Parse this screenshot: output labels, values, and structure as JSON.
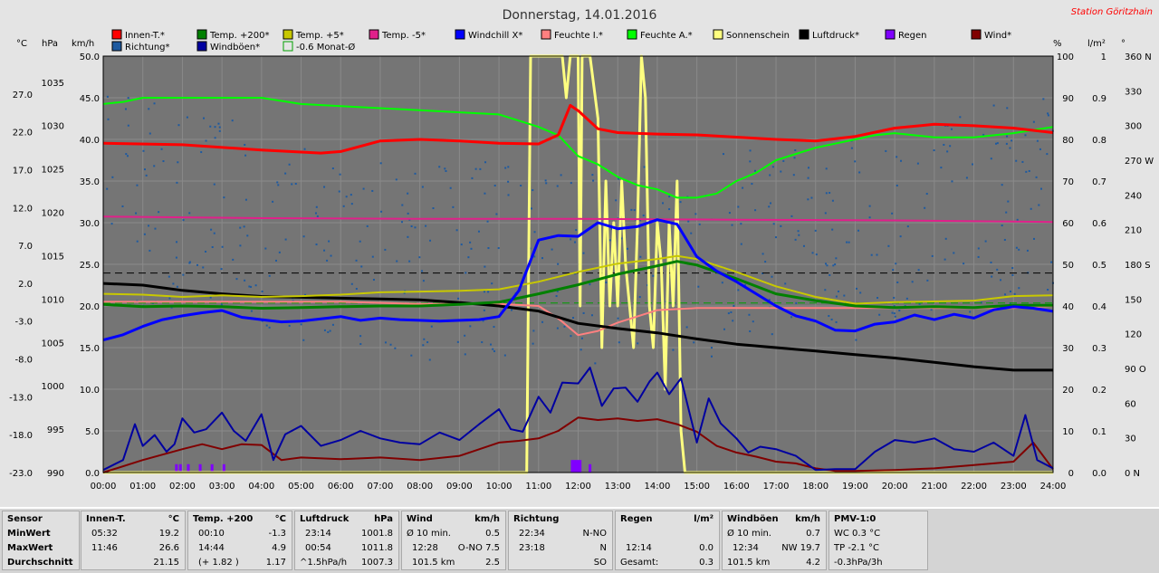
{
  "header": {
    "title": "Donnerstag, 14.01.2016",
    "station": "Station Göritzhain"
  },
  "legend": [
    {
      "label": "Innen-T.*",
      "color": "#ff0000"
    },
    {
      "label": "Temp. +200*",
      "color": "#008000"
    },
    {
      "label": "Temp. +5*",
      "color": "#c8c800"
    },
    {
      "label": "Temp. -5*",
      "color": "#e0208a"
    },
    {
      "label": "Windchill X*",
      "color": "#0000ff"
    },
    {
      "label": "Feuchte I.*",
      "color": "#ff8080"
    },
    {
      "label": "Feuchte A.*",
      "color": "#00ff00"
    },
    {
      "label": "Sonnenschein",
      "color": "#ffff80"
    },
    {
      "label": "Luftdruck*",
      "color": "#000000"
    },
    {
      "label": "Regen",
      "color": "#8000ff"
    },
    {
      "label": "Wind*",
      "color": "#800000"
    },
    {
      "label": "Richtung*",
      "color": "#1e5aa0"
    },
    {
      "label": "Windböen*",
      "color": "#0000a0"
    },
    {
      "label": "-0.6 Monat-Ø",
      "color": "#00a000"
    }
  ],
  "axes": {
    "units": {
      "temp": "°C",
      "pressure": "hPa",
      "wind": "km/h",
      "humidity": "%",
      "rain": "l/m²",
      "direction": "°"
    },
    "temp_ticks": [
      "27.0",
      "22.0",
      "17.0",
      "12.0",
      "7.0",
      "2.0",
      "-3.0",
      "-8.0",
      "-13.0",
      "-18.0",
      "-23.0"
    ],
    "pressure_ticks": [
      "1035",
      "1030",
      "1025",
      "1020",
      "1015",
      "1010",
      "1005",
      "1000",
      "995",
      "990"
    ],
    "wind_ticks": [
      "50.0",
      "45.0",
      "40.0",
      "35.0",
      "30.0",
      "25.0",
      "20.0",
      "15.0",
      "10.0",
      "5.0",
      "0.0"
    ],
    "humidity_ticks": [
      "100",
      "90",
      "80",
      "70",
      "60",
      "50",
      "40",
      "30",
      "20",
      "10",
      "0"
    ],
    "rain_ticks": [
      "1",
      "0.9",
      "0.8",
      "0.7",
      "0.6",
      "0.5",
      "0.4",
      "0.3",
      "0.2",
      "0.1",
      "0.0"
    ],
    "direction_ticks": [
      "360 N",
      "330",
      "300",
      "270 W",
      "240",
      "210",
      "180 S",
      "150",
      "120",
      "90 O",
      "60",
      "30",
      "0 N"
    ],
    "x_ticks": [
      "00:00",
      "01:00",
      "02:00",
      "03:00",
      "04:00",
      "05:00",
      "06:00",
      "07:00",
      "08:00",
      "09:00",
      "10:00",
      "11:00",
      "12:00",
      "13:00",
      "14:00",
      "15:00",
      "16:00",
      "17:00",
      "18:00",
      "19:00",
      "20:00",
      "21:00",
      "22:00",
      "23:00",
      "24:00"
    ]
  },
  "chart_data": {
    "type": "line",
    "title": "Donnerstag, 14.01.2016",
    "x_unit": "hour of day",
    "xlim": [
      0,
      24
    ],
    "grid": true,
    "series": [
      {
        "name": "Innen-T.*",
        "axis": "temp",
        "color": "#ff0000",
        "width": 3,
        "x": [
          0,
          2,
          4,
          5.5,
          6,
          7,
          8,
          9,
          10,
          11,
          11.5,
          11.8,
          12,
          12.5,
          13,
          14,
          15,
          16,
          17,
          18,
          19,
          20,
          21,
          22,
          23,
          24
        ],
        "y": [
          20.5,
          20.3,
          19.6,
          19.2,
          19.4,
          20.8,
          21.0,
          20.8,
          20.5,
          20.4,
          21.6,
          25.5,
          24.8,
          22.4,
          21.9,
          21.7,
          21.6,
          21.3,
          21.0,
          20.8,
          21.4,
          22.5,
          23.0,
          22.8,
          22.5,
          21.9
        ]
      },
      {
        "name": "Temp. +200*",
        "axis": "temp",
        "color": "#008000",
        "width": 3,
        "x": [
          0,
          1,
          2,
          3,
          4,
          5,
          6,
          7,
          8,
          9,
          10,
          11,
          12,
          13,
          14,
          14.5,
          15,
          16,
          17,
          18,
          19,
          20,
          21,
          22,
          23,
          24
        ],
        "y": [
          -0.8,
          -1.1,
          -1.0,
          -1.1,
          -1.3,
          -1.2,
          -1.1,
          -1.0,
          -1.0,
          -0.8,
          -0.5,
          0.6,
          1.8,
          3.2,
          4.3,
          4.9,
          4.4,
          2.6,
          0.6,
          -0.3,
          -1.0,
          -1.2,
          -1.1,
          -1.2,
          -0.9,
          -0.9
        ]
      },
      {
        "name": "Temp. +5*",
        "axis": "temp",
        "color": "#c8c800",
        "width": 2,
        "x": [
          0,
          1,
          2,
          3,
          4,
          5,
          6,
          7,
          8,
          9,
          10,
          11,
          12,
          13,
          14,
          14.5,
          15,
          16,
          17,
          18,
          19,
          20,
          21,
          22,
          23,
          24
        ],
        "y": [
          0.6,
          0.5,
          0.2,
          0.4,
          0.2,
          0.3,
          0.5,
          0.8,
          0.9,
          1.0,
          1.2,
          2.2,
          3.5,
          4.6,
          5.2,
          5.6,
          5.2,
          3.5,
          1.6,
          0.2,
          -0.7,
          -0.5,
          -0.4,
          -0.3,
          0.3,
          0.4
        ]
      },
      {
        "name": "Temp. -5*",
        "axis": "temp",
        "color": "#e0208a",
        "width": 2,
        "x": [
          0,
          4,
          8,
          12,
          16,
          20,
          24
        ],
        "y": [
          10.8,
          10.6,
          10.5,
          10.5,
          10.4,
          10.3,
          10.1
        ]
      },
      {
        "name": "Windchill X*",
        "axis": "temp",
        "color": "#0000ff",
        "width": 3,
        "x": [
          0,
          0.5,
          1,
          1.5,
          2,
          2.5,
          3,
          3.5,
          4,
          4.5,
          5,
          5.5,
          6,
          6.5,
          7,
          7.5,
          8,
          8.5,
          9,
          9.5,
          10,
          10.5,
          11,
          11.5,
          12,
          12.5,
          13,
          13.5,
          14,
          14.5,
          15,
          15.5,
          16,
          16.5,
          17,
          17.5,
          18,
          18.5,
          19,
          19.5,
          20,
          20.5,
          21,
          21.5,
          22,
          22.5,
          23,
          23.5,
          24
        ],
        "y": [
          -5.5,
          -4.8,
          -3.7,
          -2.8,
          -2.3,
          -1.9,
          -1.6,
          -2.5,
          -2.8,
          -3.1,
          -3.0,
          -2.7,
          -2.4,
          -2.9,
          -2.6,
          -2.8,
          -2.9,
          -3.0,
          -2.9,
          -2.8,
          -2.4,
          1.0,
          7.7,
          8.3,
          8.2,
          10.0,
          9.2,
          9.5,
          10.4,
          9.8,
          5.5,
          3.6,
          2.2,
          0.6,
          -1.0,
          -2.3,
          -3.0,
          -4.2,
          -4.3,
          -3.4,
          -3.1,
          -2.2,
          -2.8,
          -2.1,
          -2.6,
          -1.5,
          -1.1,
          -1.3,
          -1.7
        ]
      },
      {
        "name": "Feuchte I.*",
        "axis": "humidity",
        "color": "#ff8080",
        "width": 2,
        "x": [
          0,
          2,
          4,
          6,
          8,
          9,
          10,
          11,
          11.5,
          12,
          12.5,
          13,
          14,
          15,
          16,
          17,
          18,
          19,
          20,
          21,
          22,
          23,
          24
        ],
        "y": [
          41,
          41,
          41,
          41,
          40.5,
          40.5,
          40.5,
          40.0,
          37,
          33,
          34,
          36,
          39.0,
          39.5,
          39.5,
          39.5,
          39.5,
          39.5,
          39.5,
          39.5,
          39.5,
          39.5,
          40.0
        ]
      },
      {
        "name": "Feuchte A.*",
        "axis": "humidity",
        "color": "#00ff00",
        "width": 2,
        "x": [
          0,
          0.5,
          1,
          2,
          3,
          4,
          5,
          6,
          7,
          8,
          9,
          10,
          11,
          11.5,
          12,
          12.5,
          13,
          13.5,
          14,
          14.5,
          15,
          15.5,
          16,
          16.5,
          17,
          18,
          19,
          19.5,
          20,
          21,
          22,
          23,
          24
        ],
        "y": [
          88.5,
          89,
          90,
          90,
          90,
          90,
          88.5,
          88,
          87.5,
          87,
          86.5,
          86,
          83,
          81,
          76,
          74,
          71,
          69,
          68,
          66,
          66,
          67,
          70,
          72,
          75,
          78,
          80,
          81,
          81.5,
          80.5,
          80.5,
          81.5,
          83
        ]
      },
      {
        "name": "Sonnenschein",
        "axis": "humidity",
        "color": "#ffff80",
        "width": 3,
        "x": [
          0,
          10.2,
          10.5,
          10.7,
          10.8,
          11.3,
          11.4,
          11.6,
          11.7,
          11.8,
          11.9,
          12.0,
          12.05,
          12.1,
          12.3,
          12.5,
          12.6,
          12.7,
          12.8,
          12.9,
          13.0,
          13.1,
          13.2,
          13.3,
          13.4,
          13.5,
          13.6,
          13.7,
          13.8,
          13.9,
          14.0,
          14.1,
          14.2,
          14.3,
          14.4,
          14.5,
          14.6,
          14.7,
          14.8,
          15.0,
          24
        ],
        "y": [
          0,
          0,
          0,
          0,
          100,
          100,
          100,
          100,
          90,
          100,
          100,
          100,
          40,
          100,
          100,
          85,
          30,
          70,
          40,
          60,
          40,
          70,
          50,
          40,
          30,
          60,
          100,
          90,
          40,
          30,
          60,
          50,
          20,
          60,
          40,
          70,
          10,
          0,
          0,
          0,
          0
        ]
      },
      {
        "name": "Luftdruck*",
        "axis": "pressure",
        "color": "#000000",
        "width": 3,
        "x": [
          0,
          1,
          2,
          3,
          4,
          5,
          6,
          7,
          8,
          9,
          10,
          11,
          12,
          13,
          14,
          15,
          16,
          17,
          18,
          19,
          20,
          21,
          22,
          23,
          24
        ],
        "y": [
          1011.8,
          1011.6,
          1011.0,
          1010.6,
          1010.3,
          1010.2,
          1010.1,
          1010.0,
          1009.9,
          1009.6,
          1009.2,
          1008.6,
          1007.2,
          1006.6,
          1006.1,
          1005.4,
          1004.8,
          1004.4,
          1004.0,
          1003.6,
          1003.2,
          1002.7,
          1002.2,
          1001.8,
          1001.8
        ]
      },
      {
        "name": "Wind*",
        "axis": "wind",
        "color": "#800000",
        "width": 2,
        "x": [
          0,
          1,
          2,
          2.5,
          3,
          3.5,
          4,
          4.5,
          5,
          6,
          7,
          8,
          9,
          10,
          10.5,
          11,
          11.5,
          12,
          12.5,
          13,
          13.5,
          14,
          14.5,
          15,
          15.5,
          16,
          16.5,
          17,
          17.5,
          18,
          18.5,
          19,
          20,
          21,
          22,
          23,
          23.5,
          24
        ],
        "y": [
          0,
          1.5,
          2.8,
          3.4,
          2.8,
          3.4,
          3.3,
          1.5,
          1.8,
          1.6,
          1.8,
          1.5,
          2.0,
          3.6,
          3.8,
          4.1,
          5.0,
          6.6,
          6.3,
          6.5,
          6.2,
          6.4,
          5.8,
          4.9,
          3.2,
          2.4,
          1.9,
          1.3,
          1.1,
          0.5,
          0.2,
          0.2,
          0.3,
          0.5,
          0.9,
          1.3,
          3.6,
          0.4
        ]
      },
      {
        "name": "Windböen*",
        "axis": "wind",
        "color": "#0000a0",
        "width": 2,
        "x": [
          0,
          0.5,
          0.8,
          1,
          1.3,
          1.6,
          1.8,
          2,
          2.3,
          2.6,
          3,
          3.3,
          3.6,
          4,
          4.3,
          4.6,
          5,
          5.5,
          6,
          6.5,
          7,
          7.5,
          8,
          8.5,
          9,
          9.5,
          10,
          10.3,
          10.6,
          11,
          11.3,
          11.6,
          12,
          12.3,
          12.6,
          12.9,
          13.2,
          13.5,
          13.8,
          14,
          14.3,
          14.6,
          15,
          15.3,
          15.6,
          16,
          16.3,
          16.6,
          17,
          17.5,
          18,
          18.5,
          19,
          19.5,
          20,
          20.5,
          21,
          21.5,
          22,
          22.5,
          23,
          23.3,
          23.6,
          24
        ],
        "y": [
          0.3,
          1.5,
          5.8,
          3.2,
          4.5,
          2.5,
          3.4,
          6.5,
          4.8,
          5.2,
          7.2,
          5.0,
          3.8,
          7.0,
          1.5,
          4.6,
          5.6,
          3.2,
          3.9,
          5.0,
          4.1,
          3.6,
          3.4,
          4.8,
          3.9,
          5.8,
          7.6,
          5.2,
          4.9,
          9.1,
          7.2,
          10.8,
          10.7,
          12.6,
          8.0,
          10.1,
          10.2,
          8.5,
          10.9,
          12.0,
          9.4,
          11.3,
          3.6,
          8.9,
          5.9,
          4.1,
          2.4,
          3.1,
          2.8,
          2.0,
          0.3,
          0.4,
          0.4,
          2.5,
          3.9,
          3.6,
          4.1,
          2.8,
          2.5,
          3.6,
          2.0,
          6.9,
          1.5,
          0.5
        ]
      },
      {
        "name": "-0.6 Monat-Ø",
        "axis": "temp",
        "color": "#00a000",
        "width": 1,
        "dash": true,
        "x": [
          0,
          24
        ],
        "y": [
          -0.6,
          -0.6
        ]
      },
      {
        "name": "Monat-Ø Luftdruck",
        "axis": "pressure",
        "color": "#000000",
        "width": 1,
        "dash": true,
        "x": [
          0,
          24
        ],
        "y": [
          1013.0,
          1013.0
        ]
      }
    ],
    "rain_marks": {
      "axis": "rain",
      "color": "#8000ff",
      "x": [
        1.85,
        1.95,
        2.15,
        2.45,
        2.75,
        3.05,
        11.85,
        11.9,
        11.95,
        12.0,
        12.05,
        12.3
      ],
      "y": [
        0.02,
        0.02,
        0.02,
        0.02,
        0.02,
        0.02,
        0.03,
        0.03,
        0.03,
        0.03,
        0.03,
        0.02
      ]
    },
    "direction_scatter": {
      "axis": "direction",
      "color": "#1e5aa0",
      "note_range": [
        90,
        330
      ]
    },
    "ylim": {
      "temp": [
        -23,
        32
      ],
      "pressure": [
        990,
        1038
      ],
      "wind": [
        0,
        50
      ],
      "humidity": [
        0,
        100
      ],
      "rain": [
        0,
        1
      ],
      "direction": [
        0,
        360
      ]
    }
  },
  "stats": {
    "sensor": {
      "header": "Sensor",
      "rows": [
        "MinWert",
        "MaxWert",
        "Durchschnitt"
      ]
    },
    "innen": {
      "header": "Innen-T.",
      "unit": "°C",
      "min_time": "05:32",
      "min": "19.2",
      "max_time": "11:46",
      "max": "26.6",
      "avg": "21.15"
    },
    "temp200": {
      "header": "Temp. +200",
      "unit": "°C",
      "min_time": "00:10",
      "min": "-1.3",
      "max_time": "14:44",
      "max": "4.9",
      "avg_note": "(+ 1.82 )",
      "avg": "1.17"
    },
    "luftdruck": {
      "header": "Luftdruck",
      "unit": "hPa",
      "min_time": "23:14",
      "min": "1001.8",
      "max_time": "00:54",
      "max": "1011.8",
      "avg_note": "^1.5hPa/h",
      "avg": "1007.3"
    },
    "wind": {
      "header": "Wind",
      "unit": "km/h",
      "r1_label": "Ø 10 min.",
      "r1": "0.5",
      "r2_time": "12:28",
      "r2": "O-NO 7.5",
      "r3_label": "101.5 km",
      "r3": "2.5"
    },
    "richtung": {
      "header": "Richtung",
      "r1_time": "22:34",
      "r1": "N-NO",
      "r2_time": "23:18",
      "r2": "N",
      "r3": "SO"
    },
    "regen": {
      "header": "Regen",
      "unit": "l/m²",
      "r2_time": "12:14",
      "r2": "0.0",
      "r3_label": "Gesamt:",
      "r3": "0.3"
    },
    "windboen": {
      "header": "Windböen",
      "unit": "km/h",
      "r1_label": "Ø 10 min.",
      "r1": "0.7",
      "r2_time": "12:34",
      "r2": "NW 19.7",
      "r3_label": "101.5 km",
      "r3": "4.2"
    },
    "pmv": {
      "header": "PMV-1:0",
      "r1": "WC 0.3 °C",
      "r2": "TP -2.1 °C",
      "r3": "-0.3hPa/3h"
    }
  }
}
